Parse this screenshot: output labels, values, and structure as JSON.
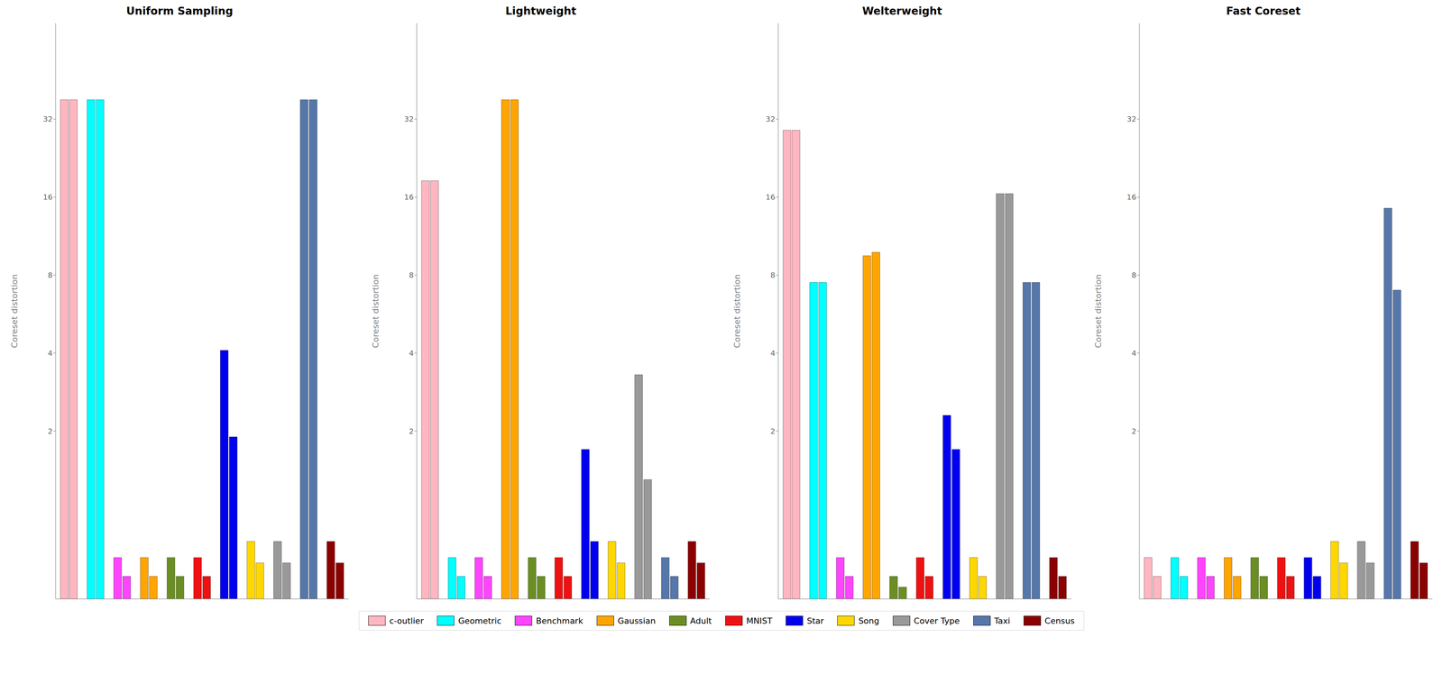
{
  "chart_data": [
    {
      "type": "bar",
      "title": "Uniform Sampling",
      "y_label": "Coreset distortion",
      "categories": [
        "c-outlier",
        "Geometric",
        "Benchmark",
        "Gaussian",
        "Adult",
        "MNIST",
        "Star",
        "Song",
        "Cover Type",
        "Taxi",
        "Census"
      ],
      "colors": [
        "#FFB6C1",
        "#00FFFF",
        "#FF44FF",
        "#FFA500",
        "#6B8E23",
        "#EE1111",
        "#0000EE",
        "#FFD700",
        "#999999",
        "#5577AA",
        "#8B0000"
      ],
      "series": [
        {
          "values": [
            38,
            38,
            0.65,
            0.65,
            0.65,
            0.65,
            4.1,
            0.75,
            0.75,
            38,
            0.75
          ]
        },
        {
          "values": [
            38,
            38,
            0.55,
            0.55,
            0.55,
            0.55,
            1.9,
            0.62,
            0.62,
            38,
            0.62
          ]
        }
      ],
      "log": "y",
      "ylim": [
        0.45,
        75
      ],
      "yticks": [
        2,
        4,
        8,
        16,
        32
      ],
      "tick_labels": "y",
      "legend": "bottom"
    },
    {
      "type": "bar",
      "title": "Lightweight",
      "y_label": "Coreset distortion",
      "categories": [
        "c-outlier",
        "Geometric",
        "Benchmark",
        "Gaussian",
        "Adult",
        "MNIST",
        "Star",
        "Song",
        "Cover Type",
        "Taxi",
        "Census"
      ],
      "colors": [
        "#FFB6C1",
        "#00FFFF",
        "#FF44FF",
        "#FFA500",
        "#6B8E23",
        "#EE1111",
        "#0000EE",
        "#FFD700",
        "#999999",
        "#5577AA",
        "#8B0000"
      ],
      "series": [
        {
          "values": [
            18.5,
            0.65,
            0.65,
            38,
            0.65,
            0.65,
            1.7,
            0.75,
            3.3,
            0.65,
            0.75
          ]
        },
        {
          "values": [
            18.5,
            0.55,
            0.55,
            38,
            0.55,
            0.55,
            0.75,
            0.62,
            1.3,
            0.55,
            0.62
          ]
        }
      ],
      "log": "y",
      "ylim": [
        0.45,
        75
      ],
      "yticks": [
        2,
        4,
        8,
        16,
        32
      ],
      "tick_labels": "y",
      "legend": "bottom"
    },
    {
      "type": "bar",
      "title": "Welterweight",
      "y_label": "Coreset distortion",
      "categories": [
        "c-outlier",
        "Geometric",
        "Benchmark",
        "Gaussian",
        "Adult",
        "MNIST",
        "Star",
        "Song",
        "Cover Type",
        "Taxi",
        "Census"
      ],
      "colors": [
        "#FFB6C1",
        "#00FFFF",
        "#FF44FF",
        "#FFA500",
        "#6B8E23",
        "#EE1111",
        "#0000EE",
        "#FFD700",
        "#999999",
        "#5577AA",
        "#8B0000"
      ],
      "series": [
        {
          "values": [
            29,
            7.5,
            0.65,
            9.5,
            0.55,
            0.65,
            2.3,
            0.65,
            16.5,
            7.5,
            0.65
          ]
        },
        {
          "values": [
            29,
            7.5,
            0.55,
            9.8,
            0.5,
            0.55,
            1.7,
            0.55,
            16.5,
            7.5,
            0.55
          ]
        }
      ],
      "log": "y",
      "ylim": [
        0.45,
        75
      ],
      "yticks": [
        2,
        4,
        8,
        16,
        32
      ],
      "tick_labels": "y",
      "legend": "bottom"
    },
    {
      "type": "bar",
      "title": "Fast Coreset",
      "y_label": "Coreset distortion",
      "categories": [
        "c-outlier",
        "Geometric",
        "Benchmark",
        "Gaussian",
        "Adult",
        "MNIST",
        "Star",
        "Song",
        "Cover Type",
        "Taxi",
        "Census"
      ],
      "colors": [
        "#FFB6C1",
        "#00FFFF",
        "#FF44FF",
        "#FFA500",
        "#6B8E23",
        "#EE1111",
        "#0000EE",
        "#FFD700",
        "#999999",
        "#5577AA",
        "#8B0000"
      ],
      "series": [
        {
          "values": [
            0.65,
            0.65,
            0.65,
            0.65,
            0.65,
            0.65,
            0.65,
            0.75,
            0.75,
            14.5,
            0.75
          ]
        },
        {
          "values": [
            0.55,
            0.55,
            0.55,
            0.55,
            0.55,
            0.55,
            0.55,
            0.62,
            0.62,
            7.0,
            0.62
          ]
        }
      ],
      "log": "y",
      "ylim": [
        0.45,
        75
      ],
      "yticks": [
        2,
        4,
        8,
        16,
        32
      ],
      "tick_labels": "y",
      "legend": "bottom"
    }
  ]
}
